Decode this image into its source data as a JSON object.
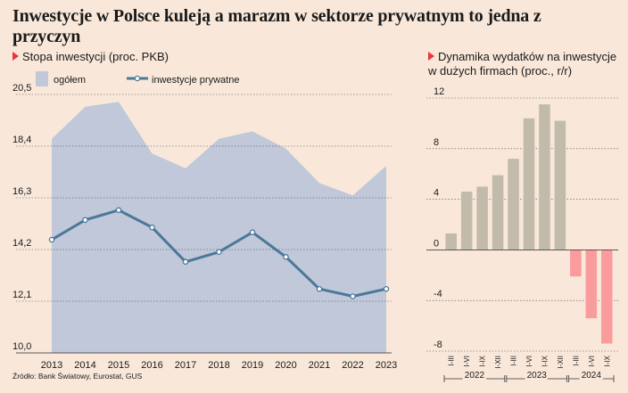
{
  "title": "Inwestycje w Polsce kuleją a marazm w sektorze prywatnym to jedna z przyczyn",
  "source": "Źródło: Bank Światowy, Eurostat, GUS",
  "colors": {
    "background": "#f9e8da",
    "area": "#c0c8d9",
    "line": "#4a7899",
    "bar_positive": "#c2bbab",
    "bar_negative": "#fa9c9e",
    "accent": "#e8363c"
  },
  "chart_data": [
    {
      "type": "area",
      "title": "Stopa inwestycji (proc. PKB)",
      "categories": [
        "2013",
        "2014",
        "2015",
        "2016",
        "2017",
        "2018",
        "2019",
        "2020",
        "2021",
        "2022",
        "2023"
      ],
      "series": [
        {
          "name": "ogółem",
          "type": "area",
          "values": [
            18.7,
            20.0,
            20.2,
            18.1,
            17.5,
            18.7,
            19.0,
            18.3,
            16.9,
            16.4,
            17.6
          ]
        },
        {
          "name": "inwestycje prywatne",
          "type": "line",
          "values": [
            14.6,
            15.4,
            15.8,
            15.1,
            13.7,
            14.1,
            14.9,
            13.9,
            12.6,
            12.3,
            12.6
          ]
        }
      ],
      "yticks": [
        "20,5",
        "18,4",
        "16,3",
        "14,2",
        "12,1",
        "10,0"
      ],
      "ylim": [
        10.0,
        20.5
      ],
      "grid": true,
      "legend": "top-left"
    },
    {
      "type": "bar",
      "title": "Dynamika wydatków na inwestycje w dużych firmach (proc., r/r)",
      "categories": [
        "I-III",
        "I-VI",
        "I-IX",
        "I-XII",
        "I-III",
        "I-VI",
        "I-IX",
        "I-XII",
        "I-III",
        "I-VI",
        "I-IX"
      ],
      "groups": [
        {
          "label": "2022",
          "count": 4
        },
        {
          "label": "2023",
          "count": 4
        },
        {
          "label": "2024",
          "count": 3
        }
      ],
      "values": [
        1.3,
        4.6,
        5.0,
        5.9,
        7.2,
        10.4,
        11.5,
        10.2,
        -2.1,
        -5.4,
        -7.4
      ],
      "yticks": [
        "12",
        "8",
        "4",
        "0",
        "-4",
        "-8"
      ],
      "ylim": [
        -8,
        12
      ],
      "grid": true
    }
  ]
}
